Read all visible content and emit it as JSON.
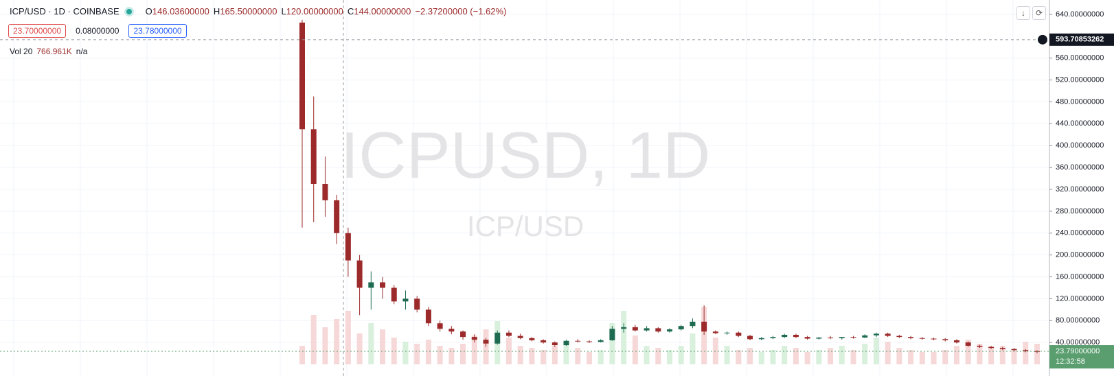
{
  "header": {
    "symbol": "ICP/USD · 1D · COINBASE",
    "legend": [
      {
        "key": "O",
        "value": "146.03600000"
      },
      {
        "key": "H",
        "value": "165.50000000"
      },
      {
        "key": "L",
        "value": "120.00000000"
      },
      {
        "key": "C",
        "value": "144.00000000"
      }
    ],
    "change": "−2.37200000 (−1.62%)",
    "bid": "23.70000000",
    "spread": "0.08000000",
    "ask": "23.78000000",
    "volume_label": "Vol 20",
    "volume_value": "766.961K",
    "volume_extra": "n/a"
  },
  "watermark": {
    "title": "ICPUSD, 1D",
    "subtitle": "ICP/USD"
  },
  "chart_data": {
    "type": "candlestick",
    "grid": true,
    "ylim": [
      0,
      660
    ],
    "yticks": [
      {
        "value": 40,
        "label": "40.00000000"
      },
      {
        "value": 80,
        "label": "80.00000000"
      },
      {
        "value": 120,
        "label": "120.00000000"
      },
      {
        "value": 160,
        "label": "160.00000000"
      },
      {
        "value": 200,
        "label": "200.00000000"
      },
      {
        "value": 240,
        "label": "240.00000000"
      },
      {
        "value": 280,
        "label": "280.00000000"
      },
      {
        "value": 320,
        "label": "320.00000000"
      },
      {
        "value": 360,
        "label": "360.00000000"
      },
      {
        "value": 400,
        "label": "400.00000000"
      },
      {
        "value": 440,
        "label": "440.00000000"
      },
      {
        "value": 480,
        "label": "480.00000000"
      },
      {
        "value": 520,
        "label": "520.00000000"
      },
      {
        "value": 560,
        "label": "560.00000000"
      },
      {
        "value": 640,
        "label": "640.00000000"
      }
    ],
    "up_color": "#1e6b52",
    "down_color": "#9c2a2a",
    "open": [
      625,
      430,
      330,
      300,
      240,
      190,
      140,
      150,
      140,
      115,
      120,
      100,
      75,
      65,
      60,
      50,
      45,
      38,
      58,
      52,
      48,
      44,
      40,
      35,
      43,
      42,
      41,
      44,
      65,
      68,
      62,
      66,
      60,
      64,
      70,
      78,
      60,
      57,
      58,
      52,
      46,
      48,
      50,
      54,
      50,
      47,
      49,
      48,
      50,
      49,
      53,
      56,
      52,
      50,
      48,
      47,
      46,
      44,
      40,
      34,
      32,
      30,
      28,
      26,
      24
    ],
    "high": [
      630,
      490,
      380,
      310,
      250,
      200,
      170,
      160,
      145,
      135,
      125,
      105,
      80,
      70,
      62,
      55,
      48,
      62,
      62,
      56,
      50,
      46,
      42,
      45,
      46,
      44,
      46,
      70,
      75,
      72,
      70,
      68,
      66,
      72,
      84,
      108,
      62,
      60,
      60,
      54,
      50,
      52,
      56,
      56,
      52,
      50,
      52,
      50,
      52,
      55,
      58,
      58,
      54,
      52,
      50,
      49,
      48,
      46,
      42,
      36,
      34,
      32,
      30,
      28,
      26
    ],
    "low": [
      250,
      260,
      270,
      220,
      160,
      90,
      100,
      120,
      110,
      100,
      95,
      70,
      60,
      55,
      45,
      40,
      32,
      36,
      50,
      46,
      42,
      38,
      32,
      34,
      40,
      39,
      40,
      43,
      58,
      60,
      60,
      58,
      58,
      62,
      66,
      54,
      55,
      54,
      50,
      44,
      44,
      46,
      48,
      48,
      45,
      45,
      46,
      45,
      47,
      48,
      50,
      50,
      48,
      46,
      45,
      44,
      42,
      38,
      32,
      30,
      28,
      26,
      24,
      22,
      20
    ],
    "close": [
      430,
      330,
      300,
      240,
      190,
      140,
      150,
      140,
      115,
      120,
      100,
      75,
      65,
      60,
      50,
      45,
      38,
      58,
      52,
      48,
      44,
      40,
      35,
      43,
      42,
      41,
      44,
      65,
      68,
      62,
      66,
      60,
      64,
      70,
      78,
      60,
      57,
      58,
      52,
      46,
      48,
      50,
      54,
      50,
      47,
      49,
      48,
      50,
      49,
      53,
      56,
      52,
      50,
      48,
      47,
      46,
      44,
      40,
      34,
      32,
      30,
      28,
      26,
      24,
      23.79
    ],
    "volume": [
      900,
      2400,
      1800,
      2200,
      2600,
      1500,
      2000,
      1700,
      1300,
      1100,
      1000,
      1200,
      900,
      800,
      1000,
      1400,
      1700,
      2100,
      1300,
      900,
      800,
      700,
      900,
      1100,
      800,
      600,
      700,
      2000,
      2600,
      1400,
      900,
      800,
      700,
      900,
      1500,
      2800,
      1300,
      900,
      700,
      800,
      600,
      700,
      900,
      800,
      600,
      700,
      800,
      900,
      700,
      1000,
      1300,
      1100,
      800,
      700,
      600,
      600,
      700,
      900,
      1200,
      1000,
      800,
      900,
      700,
      1100,
      1000
    ],
    "volume_lim": [
      0,
      3000
    ],
    "volume_colors": [
      "#d9f0dd",
      "#f6d8d8"
    ],
    "crosshair_price": {
      "value": 593.70853262,
      "label": "593.70853262"
    },
    "last_price": {
      "value": 23.79,
      "label": "23.79000000",
      "color": "#5a9e6f"
    },
    "countdown": "12:32:58"
  }
}
